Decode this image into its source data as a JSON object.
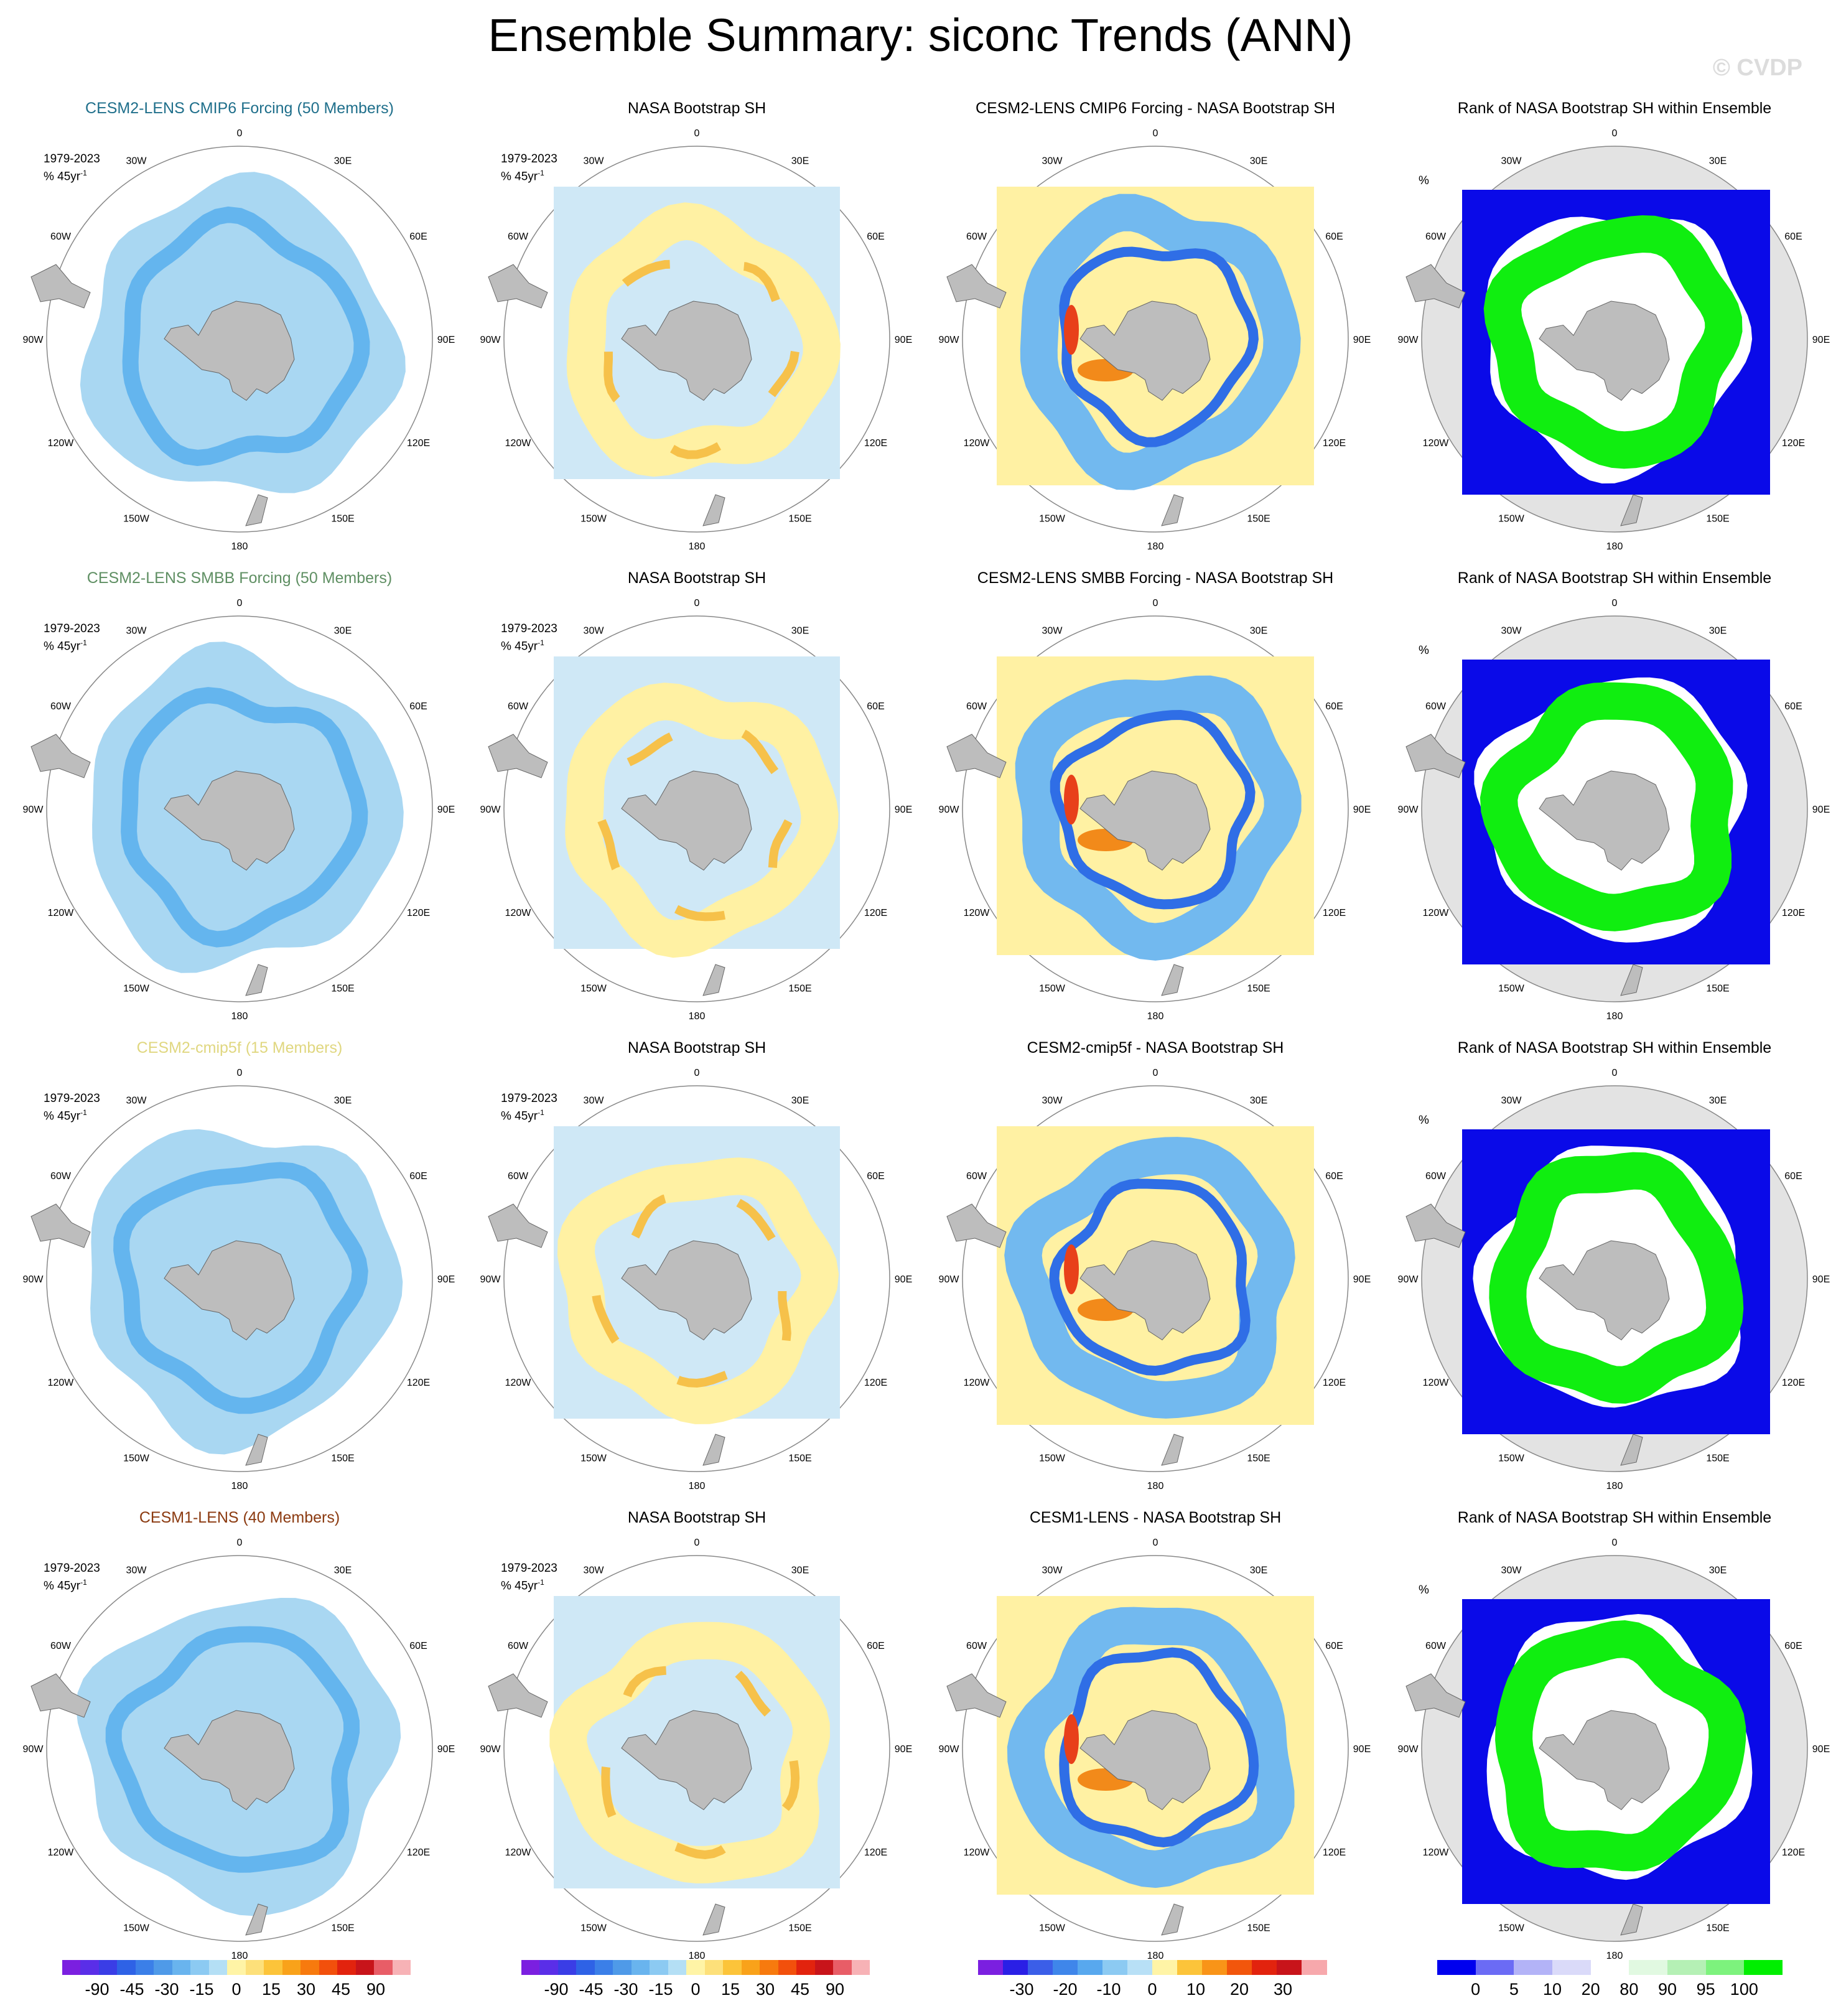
{
  "title": "Ensemble Summary: siconc Trends (ANN)",
  "watermark": "© CVDP",
  "period": "1979-2023",
  "unit_prefix": "% 45yr",
  "unit_exp": "-1",
  "rank_unit": "%",
  "longitude_labels": [
    "0",
    "30E",
    "60E",
    "90E",
    "120E",
    "150E",
    "180",
    "150W",
    "120W",
    "90W",
    "60W",
    "30W"
  ],
  "rows": [
    {
      "ens_title": "CESM2-LENS CMIP6 Forcing (50 Members)",
      "ens_color": "#1f6f8b",
      "obs_title": "NASA Bootstrap SH",
      "diff_title": "CESM2-LENS CMIP6 Forcing - NASA Bootstrap SH",
      "rank_title": "Rank of NASA Bootstrap SH within Ensemble"
    },
    {
      "ens_title": "CESM2-LENS SMBB Forcing (50 Members)",
      "ens_color": "#5f8f63",
      "obs_title": "NASA Bootstrap SH",
      "diff_title": "CESM2-LENS SMBB Forcing - NASA Bootstrap SH",
      "rank_title": "Rank of NASA Bootstrap SH within Ensemble"
    },
    {
      "ens_title": "CESM2-cmip5f (15 Members)",
      "ens_color": "#e0d780",
      "obs_title": "NASA Bootstrap SH",
      "diff_title": "CESM2-cmip5f - NASA Bootstrap SH",
      "rank_title": "Rank of NASA Bootstrap SH within Ensemble"
    },
    {
      "ens_title": "CESM1-LENS (40 Members)",
      "ens_color": "#8b3a10",
      "obs_title": "NASA Bootstrap SH",
      "diff_title": "CESM1-LENS - NASA Bootstrap SH",
      "rank_title": "Rank of NASA Bootstrap SH within Ensemble"
    }
  ],
  "colorbars": [
    {
      "ticks": [
        "-90",
        "-45",
        "-30",
        "-15",
        "0",
        "15",
        "30",
        "45",
        "90"
      ],
      "colors": [
        "#7b1fe0",
        "#5a2ee8",
        "#3a3de6",
        "#2e62e6",
        "#3b7fe8",
        "#4f9ae8",
        "#69b4ee",
        "#8ccaf2",
        "#b4dff5",
        "#fff4a6",
        "#fde07a",
        "#fcc43a",
        "#f9a21a",
        "#f77a0e",
        "#f2500c",
        "#e2230e",
        "#c8141a",
        "#e85d67",
        "#f7b2b6"
      ]
    },
    {
      "ticks": [
        "-90",
        "-45",
        "-30",
        "-15",
        "0",
        "15",
        "30",
        "45",
        "90"
      ],
      "colors": [
        "#7b1fe0",
        "#5a2ee8",
        "#3a3de6",
        "#2e62e6",
        "#3b7fe8",
        "#4f9ae8",
        "#69b4ee",
        "#8ccaf2",
        "#b4dff5",
        "#fff4a6",
        "#fde07a",
        "#fcc43a",
        "#f9a21a",
        "#f77a0e",
        "#f2500c",
        "#e2230e",
        "#c8141a",
        "#e85d67",
        "#f7b2b6"
      ]
    },
    {
      "ticks": [
        "-30",
        "-20",
        "-10",
        "0",
        "10",
        "20",
        "30"
      ],
      "colors": [
        "#7b1fe0",
        "#2a1fe6",
        "#3b5ee8",
        "#3f86ea",
        "#58a8ee",
        "#8ccaf2",
        "#b8e0f6",
        "#fff4a6",
        "#fcc43a",
        "#f99418",
        "#f2560c",
        "#e2230e",
        "#c8141a",
        "#f7a8ac"
      ]
    },
    {
      "ticks": [
        "0",
        "5",
        "10",
        "20",
        "80",
        "90",
        "95",
        "100"
      ],
      "colors": [
        "#0000ee",
        "#6b6bf5",
        "#b3b3f7",
        "#dadaf9",
        "#ffffff",
        "#e1f9e1",
        "#b5f0b5",
        "#7df27d",
        "#00ee00"
      ]
    }
  ],
  "colors": {
    "land": "#bdbdbd",
    "ens_field": "#a9d7f2",
    "ens_band": "#64b5ee",
    "obs_yellow": "#fff1a3",
    "obs_orange": "#f6c14a",
    "rank_blue": "#0a0ae8",
    "rank_green": "#10ee10",
    "rank_bg": "#e3e3e3"
  },
  "icons": {
    "map": "south-polar-stereographic-map"
  }
}
